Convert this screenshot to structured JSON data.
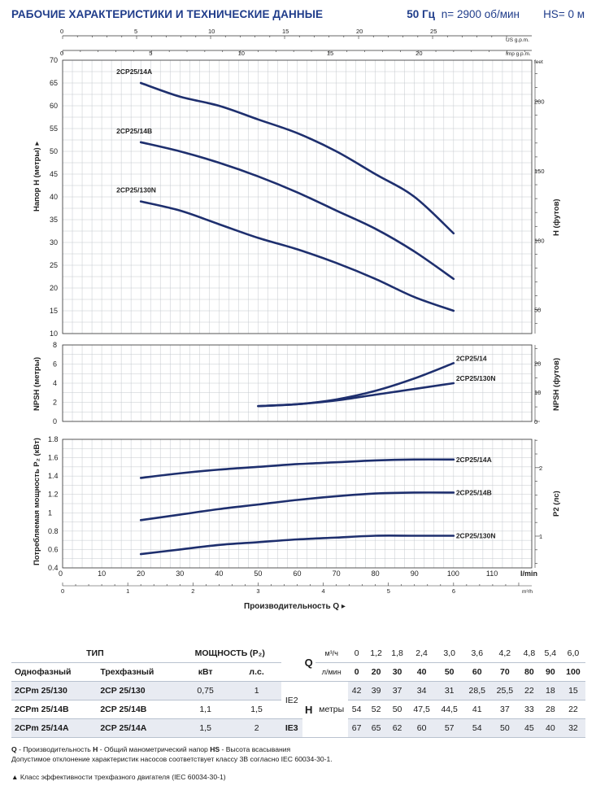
{
  "header": {
    "title": "РАБОЧИЕ ХАРАКТЕРИСТИКИ И ТЕХНИЧЕСКИЕ ДАННЫЕ",
    "frequency": "50 Гц",
    "speed": "n= 2900 об/мин",
    "hs": "HS= 0 м"
  },
  "chart_data": [
    {
      "type": "line",
      "id": "head",
      "ylabel": "Напор H (метры)",
      "ylabel_right": "H (футов)",
      "ylim": [
        10,
        70
      ],
      "y_ticks": [
        10,
        15,
        20,
        25,
        30,
        35,
        40,
        45,
        50,
        55,
        60,
        65,
        70
      ],
      "y_right_ticks": [
        50,
        100,
        150,
        200
      ],
      "y_right_unit": "feet",
      "top_axis_us": {
        "label": "US g.p.m.",
        "ticks": [
          0,
          5,
          10,
          15,
          20,
          25
        ]
      },
      "top_axis_imp": {
        "label": "Imp g.p.m.",
        "ticks": [
          0,
          5,
          10,
          15,
          20
        ]
      },
      "x": [
        20,
        30,
        40,
        50,
        60,
        70,
        80,
        90,
        100
      ],
      "series": [
        {
          "name": "2CP25/14A",
          "values": [
            65,
            62,
            60,
            57,
            54,
            50,
            45,
            40,
            32
          ]
        },
        {
          "name": "2CP25/14B",
          "values": [
            52,
            50,
            47.5,
            44.5,
            41,
            37,
            33,
            28,
            22
          ]
        },
        {
          "name": "2CP25/130N",
          "values": [
            39,
            37,
            34,
            31,
            28.5,
            25.5,
            22,
            18,
            15
          ]
        }
      ]
    },
    {
      "type": "line",
      "id": "npsh",
      "ylabel": "NPSH (метры)",
      "ylabel_right": "NPSH (футов)",
      "ylim": [
        0,
        8
      ],
      "y_ticks": [
        0,
        2,
        4,
        6,
        8
      ],
      "y_right_ticks": [
        0,
        10,
        20
      ],
      "x": [
        50,
        60,
        70,
        80,
        90,
        100
      ],
      "series": [
        {
          "name": "2CP25/14",
          "values": [
            1.6,
            1.8,
            2.3,
            3.2,
            4.5,
            6.1
          ]
        },
        {
          "name": "2CP25/130N",
          "values": [
            1.6,
            1.8,
            2.2,
            2.8,
            3.4,
            4.0
          ]
        }
      ]
    },
    {
      "type": "line",
      "id": "power",
      "ylabel": "Потребляемая мощность P₂ (кВт)",
      "ylabel_right": "P2 (лс)",
      "ylim": [
        0.4,
        1.8
      ],
      "y_ticks": [
        0.4,
        0.6,
        0.8,
        1,
        1.2,
        1.4,
        1.6,
        1.8
      ],
      "y_right_ticks": [
        1,
        2
      ],
      "x": [
        20,
        30,
        40,
        50,
        60,
        70,
        80,
        90,
        100
      ],
      "xlabel": "Производительность Q",
      "x_ticks": [
        0,
        10,
        20,
        30,
        40,
        50,
        60,
        70,
        80,
        90,
        100,
        110
      ],
      "x_unit": "l/min",
      "x2_ticks": [
        0,
        1,
        2,
        3,
        4,
        5,
        6
      ],
      "x2_unit": "m³/h",
      "series": [
        {
          "name": "2CP25/14A",
          "values": [
            1.38,
            1.43,
            1.47,
            1.5,
            1.53,
            1.55,
            1.57,
            1.58,
            1.58
          ]
        },
        {
          "name": "2CP25/14B",
          "values": [
            0.92,
            0.98,
            1.04,
            1.09,
            1.14,
            1.18,
            1.21,
            1.22,
            1.22
          ]
        },
        {
          "name": "2CP25/130N",
          "values": [
            0.55,
            0.6,
            0.65,
            0.68,
            0.71,
            0.73,
            0.75,
            0.75,
            0.75
          ]
        }
      ]
    }
  ],
  "table": {
    "type_header": "ТИП",
    "power_header": "МОЩНОСТЬ (P₂)",
    "q_letter": "Q",
    "q_unit_m3": "м³/ч",
    "q_unit_lmin": "л/мин",
    "col_single": "Однофазный",
    "col_three": "Трехфазный",
    "col_kw": "кВт",
    "col_hp": "л.с.",
    "triangle": "▲",
    "q_m3": [
      "0",
      "1,2",
      "1,8",
      "2,4",
      "3,0",
      "3,6",
      "4,2",
      "4,8",
      "5,4",
      "6,0"
    ],
    "q_lmin": [
      "0",
      "20",
      "30",
      "40",
      "50",
      "60",
      "70",
      "80",
      "90",
      "100"
    ],
    "h_label": "H",
    "h_unit": "метры",
    "rows": [
      {
        "single": "2CPm 25/130",
        "three": "2CP 25/130",
        "kw": "0,75",
        "hp": "1",
        "ie": "IE2",
        "h": [
          "42",
          "39",
          "37",
          "34",
          "31",
          "28,5",
          "25,5",
          "22",
          "18",
          "15"
        ]
      },
      {
        "single": "2CPm 25/14B",
        "three": "2CP 25/14B",
        "kw": "1,1",
        "hp": "1,5",
        "ie": "",
        "h": [
          "54",
          "52",
          "50",
          "47,5",
          "44,5",
          "41",
          "37",
          "33",
          "28",
          "22"
        ]
      },
      {
        "single": "2CPm 25/14A",
        "three": "2CP 25/14A",
        "kw": "1,5",
        "hp": "2",
        "ie": "IE3",
        "h": [
          "67",
          "65",
          "62",
          "60",
          "57",
          "54",
          "50",
          "45",
          "40",
          "32"
        ]
      }
    ]
  },
  "notes": {
    "q": "Q",
    "q_text": " - Производительность  ",
    "h": "H",
    "h_text": " - Общий манометрический напор  ",
    "hs": "HS",
    "hs_text": " - Высота всасывания",
    "tolerance": "Допустимое отклонение характеристик насосов соответствует классу 3B согласно IEC 60034-30-1.",
    "ie_class": "▲  Класс эффективности трехфазного двигателя (IEC 60034-30-1)"
  },
  "colors": {
    "curve": "#1e2f6e",
    "grid": "#c4c8ce",
    "title": "#1f3c8a",
    "shade": "#e8ebf2"
  }
}
